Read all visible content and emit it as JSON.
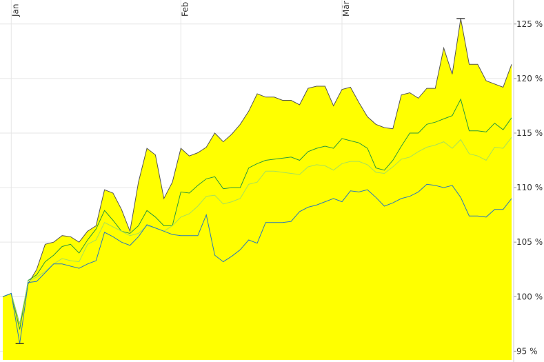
{
  "chart_data": {
    "type": "line",
    "categories": [
      null,
      "Jan",
      null,
      null,
      null,
      null,
      null,
      null,
      null,
      null,
      null,
      null,
      null,
      null,
      null,
      null,
      null,
      null,
      null,
      null,
      null,
      "Feb",
      null,
      null,
      null,
      null,
      null,
      null,
      null,
      null,
      null,
      null,
      null,
      null,
      null,
      null,
      null,
      null,
      null,
      null,
      "Mär",
      null,
      null,
      null,
      null,
      null,
      null,
      null,
      null,
      null,
      null,
      null,
      null,
      null,
      null,
      null,
      null,
      null,
      null,
      null,
      null
    ],
    "series": [
      {
        "color": "#555555",
        "fill": "#ffff00",
        "values": [
          100.0,
          100.3,
          97.5,
          101.2,
          102.5,
          104.8,
          105.0,
          105.6,
          105.5,
          105.0,
          106.0,
          106.5,
          109.8,
          109.5,
          108.0,
          106.0,
          110.5,
          113.6,
          113.0,
          109.0,
          110.5,
          113.6,
          112.9,
          113.2,
          113.7,
          115.0,
          114.2,
          114.9,
          115.8,
          117.0,
          118.6,
          118.3,
          118.3,
          118.0,
          118.0,
          117.6,
          119.1,
          119.3,
          119.3,
          117.5,
          119.0,
          119.2,
          117.8,
          116.5,
          115.8,
          115.5,
          115.4,
          118.5,
          118.7,
          118.2,
          119.1,
          119.1,
          122.8,
          120.4,
          125.5,
          121.3,
          121.3,
          119.8,
          119.5,
          119.2,
          121.3
        ]
      },
      {
        "color": "#2a9a3a",
        "values": [
          100.0,
          100.3,
          97.0,
          101.5,
          102.0,
          103.2,
          103.8,
          104.6,
          104.8,
          104.0,
          105.2,
          106.2,
          107.9,
          107.0,
          106.0,
          105.8,
          106.5,
          107.9,
          107.3,
          106.5,
          106.5,
          109.6,
          109.5,
          110.2,
          110.8,
          111.0,
          109.9,
          110.0,
          110.0,
          111.8,
          112.2,
          112.5,
          112.6,
          112.7,
          112.8,
          112.5,
          113.3,
          113.6,
          113.8,
          113.6,
          114.5,
          114.3,
          114.1,
          113.6,
          111.8,
          111.6,
          112.5,
          113.8,
          115.0,
          115.0,
          115.8,
          116.0,
          116.3,
          116.6,
          118.1,
          115.2,
          115.2,
          115.1,
          115.9,
          115.3,
          116.4
        ]
      },
      {
        "color": "#a6e05a",
        "values": [
          100.0,
          100.3,
          97.5,
          101.4,
          101.8,
          102.3,
          103.0,
          103.5,
          103.3,
          103.2,
          104.8,
          105.2,
          106.8,
          106.4,
          106.0,
          105.6,
          105.8,
          106.5,
          106.3,
          106.0,
          106.5,
          107.3,
          107.6,
          108.3,
          109.2,
          109.3,
          108.5,
          108.7,
          109.0,
          110.3,
          110.5,
          111.5,
          111.5,
          111.4,
          111.3,
          111.2,
          111.9,
          112.1,
          112.0,
          111.6,
          112.2,
          112.4,
          112.4,
          112.1,
          111.4,
          111.3,
          111.9,
          112.6,
          112.8,
          113.3,
          113.7,
          113.9,
          114.2,
          113.6,
          114.4,
          113.1,
          112.9,
          112.5,
          113.7,
          113.6,
          114.6
        ]
      },
      {
        "color": "#2a7ab8",
        "values": [
          100.0,
          100.3,
          95.7,
          101.3,
          101.4,
          102.2,
          103.0,
          103.0,
          102.8,
          102.6,
          103.0,
          103.3,
          105.9,
          105.5,
          105.0,
          104.7,
          105.5,
          106.6,
          106.3,
          106.0,
          105.7,
          105.6,
          105.6,
          105.6,
          107.5,
          103.8,
          103.2,
          103.7,
          104.3,
          105.2,
          104.9,
          106.8,
          106.8,
          106.8,
          106.9,
          107.8,
          108.2,
          108.4,
          108.7,
          109.0,
          108.7,
          109.7,
          109.6,
          109.8,
          109.1,
          108.3,
          108.6,
          109.0,
          109.2,
          109.6,
          110.3,
          110.2,
          110.0,
          110.2,
          109.1,
          107.4,
          107.4,
          107.3,
          108.0,
          108.0,
          109.0
        ]
      }
    ],
    "ylim": [
      94.2,
      127.2
    ],
    "yticks": [
      {
        "value": 95,
        "label": "95 %"
      },
      {
        "value": 100,
        "label": "100 %"
      },
      {
        "value": 105,
        "label": "105 %"
      },
      {
        "value": 110,
        "label": "110 %"
      },
      {
        "value": 115,
        "label": "115 %"
      },
      {
        "value": 120,
        "label": "120 %"
      },
      {
        "value": 125,
        "label": "125 %"
      }
    ],
    "grid": true
  }
}
